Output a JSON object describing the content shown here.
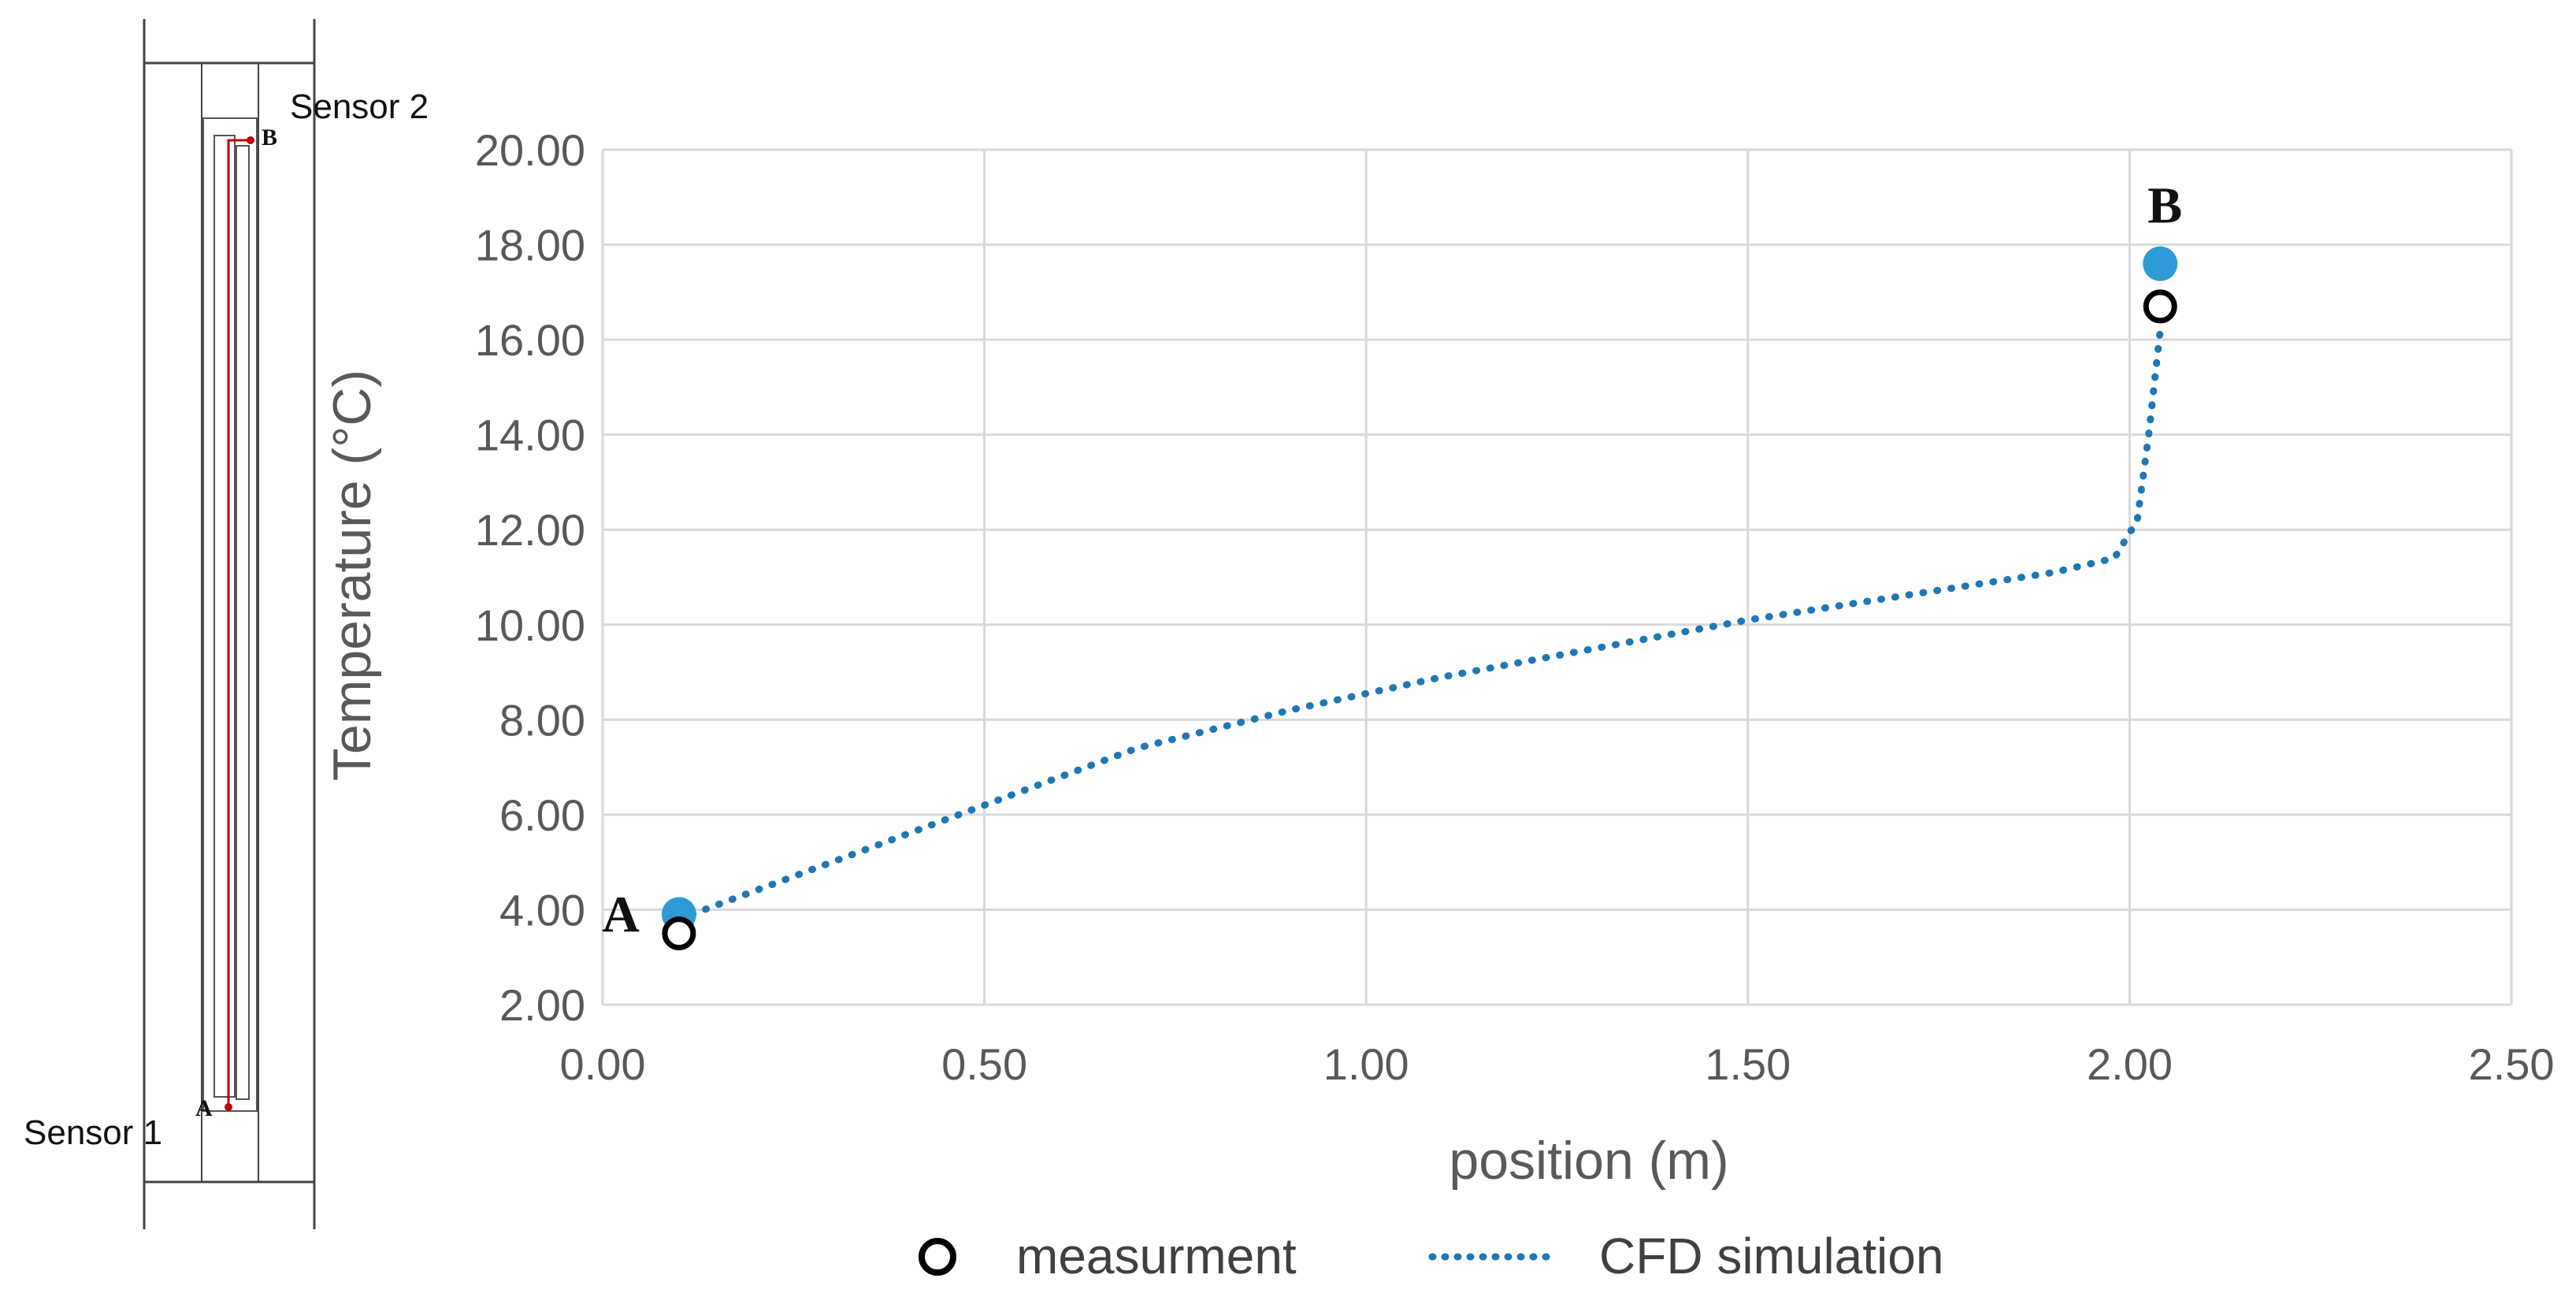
{
  "diagram": {
    "sensor_top_label": "Sensor 2",
    "sensor_bottom_label": "Sensor 1",
    "point_top_label": "B",
    "point_bottom_label": "A",
    "line_color": "#c00000"
  },
  "chart_data": {
    "type": "scatter",
    "xlabel": "position (m)",
    "ylabel": "Temperature (°C)",
    "xlim": [
      0,
      2.5
    ],
    "ylim": [
      2,
      20
    ],
    "x_ticks": [
      "0.00",
      "0.50",
      "1.00",
      "1.50",
      "2.00",
      "2.50"
    ],
    "y_ticks": [
      "2.00",
      "4.00",
      "6.00",
      "8.00",
      "10.00",
      "12.00",
      "14.00",
      "16.00",
      "18.00",
      "20.00"
    ],
    "grid": true,
    "legend_position": "bottom",
    "series": [
      {
        "name": "measurment",
        "style": "open-circle",
        "color": "#000000",
        "points": [
          {
            "x": 0.1,
            "y": 3.5
          },
          {
            "x": 2.04,
            "y": 16.7
          }
        ]
      },
      {
        "name": "CFD simulation",
        "style": "dotted-line",
        "color": "#1f77b4",
        "points": [
          {
            "x": 0.1,
            "y": 3.8
          },
          {
            "x": 0.3,
            "y": 5.0
          },
          {
            "x": 0.5,
            "y": 6.2
          },
          {
            "x": 0.7,
            "y": 7.4
          },
          {
            "x": 0.9,
            "y": 8.2
          },
          {
            "x": 1.1,
            "y": 8.9
          },
          {
            "x": 1.3,
            "y": 9.5
          },
          {
            "x": 1.5,
            "y": 10.1
          },
          {
            "x": 1.7,
            "y": 10.6
          },
          {
            "x": 1.9,
            "y": 11.1
          },
          {
            "x": 1.98,
            "y": 11.4
          },
          {
            "x": 2.01,
            "y": 12.2
          },
          {
            "x": 2.025,
            "y": 14.0
          },
          {
            "x": 2.04,
            "y": 16.2
          }
        ]
      }
    ],
    "highlight_points": {
      "color": "#2f9bd6",
      "points": [
        {
          "x": 0.1,
          "y": 3.9
        },
        {
          "x": 2.04,
          "y": 17.6
        }
      ]
    },
    "annotations": [
      {
        "text": "A",
        "x": 0.1,
        "y": 3.9
      },
      {
        "text": "B",
        "x": 2.04,
        "y": 17.6
      }
    ]
  }
}
